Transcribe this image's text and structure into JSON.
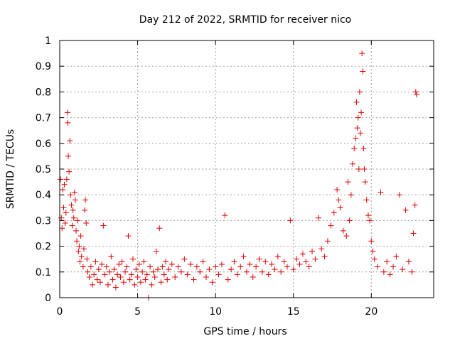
{
  "chart_data": {
    "type": "scatter",
    "title": "Day 212 of 2022, SRMTID for receiver nico",
    "xlabel": "GPS time / hours",
    "ylabel": "SRMTID / TECUs",
    "xlim": [
      0,
      24
    ],
    "ylim": [
      0,
      1
    ],
    "grid": true,
    "marker": "+",
    "color": "#e00000",
    "x_ticks": [
      0,
      5,
      10,
      15,
      20
    ],
    "x_tick_labels": [
      "0",
      "5",
      "10",
      "15",
      "20"
    ],
    "y_ticks": [
      0,
      0.1,
      0.2,
      0.3,
      0.4,
      0.5,
      0.6,
      0.7,
      0.8,
      0.9,
      1
    ],
    "y_tick_labels": [
      "0",
      "0.1",
      "0.2",
      "0.3",
      "0.4",
      "0.5",
      "0.6",
      "0.7",
      "0.8",
      "0.9",
      "1"
    ],
    "series": [
      {
        "name": "SRMTID",
        "points": [
          [
            0.05,
            0.46
          ],
          [
            0.1,
            0.31
          ],
          [
            0.15,
            0.27
          ],
          [
            0.2,
            0.42
          ],
          [
            0.25,
            0.35
          ],
          [
            0.3,
            0.44
          ],
          [
            0.35,
            0.29
          ],
          [
            0.4,
            0.33
          ],
          [
            0.45,
            0.46
          ],
          [
            0.5,
            0.72
          ],
          [
            0.52,
            0.68
          ],
          [
            0.55,
            0.55
          ],
          [
            0.6,
            0.49
          ],
          [
            0.65,
            0.61
          ],
          [
            0.7,
            0.4
          ],
          [
            0.75,
            0.36
          ],
          [
            0.8,
            0.28
          ],
          [
            0.85,
            0.34
          ],
          [
            0.9,
            0.31
          ],
          [
            0.95,
            0.41
          ],
          [
            1.0,
            0.38
          ],
          [
            1.05,
            0.26
          ],
          [
            1.1,
            0.22
          ],
          [
            1.15,
            0.3
          ],
          [
            1.2,
            0.18
          ],
          [
            1.25,
            0.2
          ],
          [
            1.3,
            0.14
          ],
          [
            1.35,
            0.24
          ],
          [
            1.4,
            0.16
          ],
          [
            1.5,
            0.12
          ],
          [
            1.55,
            0.19
          ],
          [
            1.6,
            0.34
          ],
          [
            1.65,
            0.38
          ],
          [
            1.7,
            0.29
          ],
          [
            1.75,
            0.15
          ],
          [
            1.8,
            0.1
          ],
          [
            1.9,
            0.08
          ],
          [
            2.0,
            0.12
          ],
          [
            2.1,
            0.05
          ],
          [
            2.2,
            0.09
          ],
          [
            2.3,
            0.14
          ],
          [
            2.4,
            0.07
          ],
          [
            2.5,
            0.11
          ],
          [
            2.6,
            0.06
          ],
          [
            2.7,
            0.13
          ],
          [
            2.8,
            0.28
          ],
          [
            2.9,
            0.09
          ],
          [
            3.0,
            0.12
          ],
          [
            3.1,
            0.05
          ],
          [
            3.2,
            0.1
          ],
          [
            3.3,
            0.16
          ],
          [
            3.4,
            0.07
          ],
          [
            3.5,
            0.11
          ],
          [
            3.6,
            0.04
          ],
          [
            3.7,
            0.09
          ],
          [
            3.8,
            0.13
          ],
          [
            3.9,
            0.08
          ],
          [
            4.0,
            0.14
          ],
          [
            4.1,
            0.06
          ],
          [
            4.2,
            0.1
          ],
          [
            4.3,
            0.12
          ],
          [
            4.4,
            0.24
          ],
          [
            4.5,
            0.07
          ],
          [
            4.6,
            0.09
          ],
          [
            4.7,
            0.15
          ],
          [
            4.8,
            0.05
          ],
          [
            4.9,
            0.11
          ],
          [
            5.0,
            0.08
          ],
          [
            5.1,
            0.13
          ],
          [
            5.2,
            0.06
          ],
          [
            5.3,
            0.1
          ],
          [
            5.4,
            0.14
          ],
          [
            5.5,
            0.07
          ],
          [
            5.6,
            0.09
          ],
          [
            5.7,
            0.0
          ],
          [
            5.8,
            0.12
          ],
          [
            5.9,
            0.05
          ],
          [
            6.0,
            0.1
          ],
          [
            6.1,
            0.08
          ],
          [
            6.2,
            0.18
          ],
          [
            6.3,
            0.11
          ],
          [
            6.4,
            0.27
          ],
          [
            6.5,
            0.06
          ],
          [
            6.6,
            0.12
          ],
          [
            6.7,
            0.09
          ],
          [
            6.8,
            0.14
          ],
          [
            6.9,
            0.07
          ],
          [
            7.0,
            0.11
          ],
          [
            7.2,
            0.13
          ],
          [
            7.4,
            0.08
          ],
          [
            7.6,
            0.12
          ],
          [
            7.8,
            0.1
          ],
          [
            8.0,
            0.15
          ],
          [
            8.2,
            0.09
          ],
          [
            8.4,
            0.13
          ],
          [
            8.6,
            0.07
          ],
          [
            8.8,
            0.12
          ],
          [
            9.0,
            0.1
          ],
          [
            9.2,
            0.14
          ],
          [
            9.4,
            0.08
          ],
          [
            9.6,
            0.11
          ],
          [
            9.8,
            0.06
          ],
          [
            10.0,
            0.12
          ],
          [
            10.2,
            0.09
          ],
          [
            10.4,
            0.13
          ],
          [
            10.6,
            0.32
          ],
          [
            10.8,
            0.07
          ],
          [
            11.0,
            0.11
          ],
          [
            11.2,
            0.14
          ],
          [
            11.4,
            0.09
          ],
          [
            11.6,
            0.12
          ],
          [
            11.8,
            0.16
          ],
          [
            12.0,
            0.1
          ],
          [
            12.2,
            0.13
          ],
          [
            12.4,
            0.08
          ],
          [
            12.6,
            0.12
          ],
          [
            12.8,
            0.15
          ],
          [
            13.0,
            0.1
          ],
          [
            13.2,
            0.14
          ],
          [
            13.4,
            0.09
          ],
          [
            13.6,
            0.13
          ],
          [
            13.8,
            0.11
          ],
          [
            14.0,
            0.16
          ],
          [
            14.2,
            0.1
          ],
          [
            14.4,
            0.14
          ],
          [
            14.6,
            0.12
          ],
          [
            14.8,
            0.3
          ],
          [
            15.0,
            0.11
          ],
          [
            15.2,
            0.15
          ],
          [
            15.4,
            0.13
          ],
          [
            15.6,
            0.17
          ],
          [
            15.8,
            0.14
          ],
          [
            16.0,
            0.12
          ],
          [
            16.2,
            0.18
          ],
          [
            16.4,
            0.15
          ],
          [
            16.6,
            0.31
          ],
          [
            16.8,
            0.19
          ],
          [
            17.0,
            0.16
          ],
          [
            17.2,
            0.22
          ],
          [
            17.4,
            0.28
          ],
          [
            17.6,
            0.33
          ],
          [
            17.8,
            0.42
          ],
          [
            17.9,
            0.38
          ],
          [
            18.0,
            0.35
          ],
          [
            18.2,
            0.26
          ],
          [
            18.4,
            0.24
          ],
          [
            18.5,
            0.45
          ],
          [
            18.6,
            0.3
          ],
          [
            18.7,
            0.4
          ],
          [
            18.8,
            0.52
          ],
          [
            18.9,
            0.58
          ],
          [
            19.0,
            0.62
          ],
          [
            19.05,
            0.76
          ],
          [
            19.1,
            0.66
          ],
          [
            19.15,
            0.7
          ],
          [
            19.2,
            0.5
          ],
          [
            19.25,
            0.8
          ],
          [
            19.3,
            0.64
          ],
          [
            19.35,
            0.72
          ],
          [
            19.4,
            0.95
          ],
          [
            19.45,
            0.88
          ],
          [
            19.5,
            0.58
          ],
          [
            19.55,
            0.5
          ],
          [
            19.6,
            0.45
          ],
          [
            19.7,
            0.38
          ],
          [
            19.8,
            0.32
          ],
          [
            19.9,
            0.3
          ],
          [
            20.0,
            0.22
          ],
          [
            20.1,
            0.18
          ],
          [
            20.2,
            0.15
          ],
          [
            20.4,
            0.12
          ],
          [
            20.6,
            0.41
          ],
          [
            20.8,
            0.1
          ],
          [
            21.0,
            0.14
          ],
          [
            21.2,
            0.09
          ],
          [
            21.4,
            0.12
          ],
          [
            21.6,
            0.16
          ],
          [
            21.8,
            0.4
          ],
          [
            22.0,
            0.11
          ],
          [
            22.2,
            0.34
          ],
          [
            22.4,
            0.14
          ],
          [
            22.6,
            0.1
          ],
          [
            22.7,
            0.25
          ],
          [
            22.8,
            0.36
          ],
          [
            22.85,
            0.8
          ],
          [
            22.9,
            0.79
          ]
        ]
      }
    ]
  }
}
